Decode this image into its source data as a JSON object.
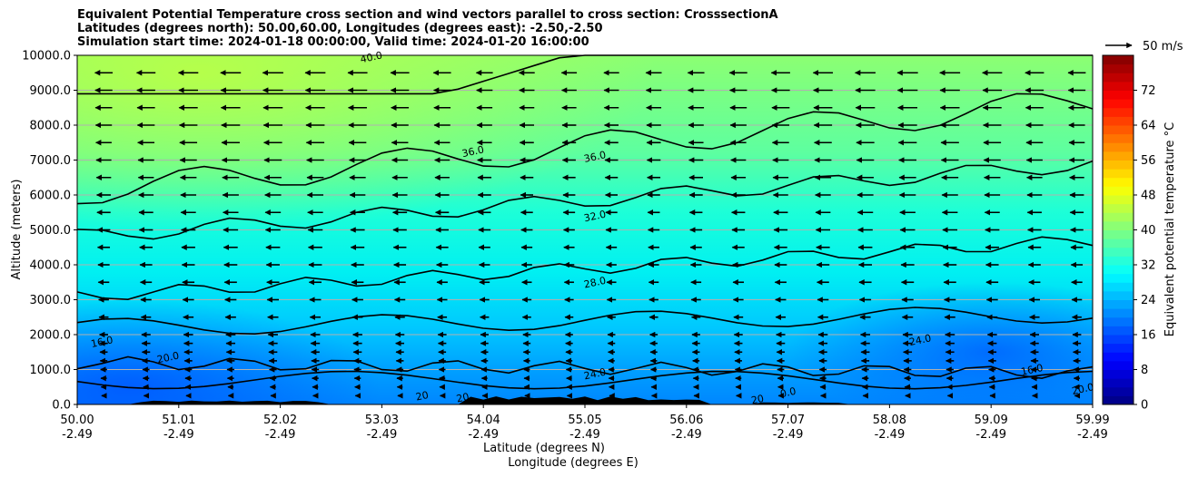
{
  "title": {
    "line1": "Equivalent Potential Temperature cross section and wind vectors parallel to cross section: CrosssectionA",
    "line2": "Latitudes (degrees north): 50.00,60.00, Longitudes (degrees east): -2.50,-2.50",
    "line3": "Simulation start time: 2024-01-18 00:00:00, Valid time: 2024-01-20 16:00:00"
  },
  "chart_data": {
    "type": "heatmap",
    "subtype": "filled-contour cross section with wind vectors",
    "xlabel_lat": "Latitude (degrees N)",
    "xlabel_lon": "Longitude (degrees E)",
    "ylabel": "Altitude (meters)",
    "ylim": [
      0,
      10000
    ],
    "y_ticks": [
      0,
      1000,
      2000,
      3000,
      4000,
      5000,
      6000,
      7000,
      8000,
      9000,
      10000
    ],
    "y_tick_labels": [
      "0.0",
      "1000.0",
      "2000.0",
      "3000.0",
      "4000.0",
      "5000.0",
      "6000.0",
      "7000.0",
      "8000.0",
      "9000.0",
      "10000.0"
    ],
    "x_ticks_lat": [
      "50.00",
      "51.01",
      "52.02",
      "53.03",
      "54.04",
      "55.05",
      "56.06",
      "57.07",
      "58.08",
      "59.09",
      "59.99"
    ],
    "x_ticks_lon": [
      "-2.49",
      "-2.49",
      "-2.49",
      "-2.49",
      "-2.49",
      "-2.49",
      "-2.49",
      "-2.49",
      "-2.49",
      "-2.49",
      "-2.49"
    ],
    "colorbar": {
      "label": "Equivalent potential temperature $^\\circ$C",
      "label_display": "Equivalent potential temperature °C",
      "range": [
        0,
        80
      ],
      "ticks": [
        "0",
        "8",
        "16",
        "24",
        "32",
        "40",
        "48",
        "56",
        "64",
        "72"
      ],
      "colormap": "jet"
    },
    "contour_levels": [
      16,
      20,
      24,
      28,
      32,
      36,
      40
    ],
    "contour_labels": [
      {
        "text": "36.0",
        "lat": 53.9,
        "alt": 7150
      },
      {
        "text": "36.0",
        "lat": 55.1,
        "alt": 7000
      },
      {
        "text": "32.0",
        "lat": 55.1,
        "alt": 5300
      },
      {
        "text": "28.0",
        "lat": 55.1,
        "alt": 3400
      },
      {
        "text": "24.0",
        "lat": 55.1,
        "alt": 780
      },
      {
        "text": "24.0",
        "lat": 58.3,
        "alt": 1750
      },
      {
        "text": "16.0",
        "lat": 50.25,
        "alt": 1700
      },
      {
        "text": "20.0",
        "lat": 50.9,
        "alt": 1250
      },
      {
        "text": "16.0",
        "lat": 59.4,
        "alt": 900
      },
      {
        "text": "20.0",
        "lat": 59.9,
        "alt": 350
      },
      {
        "text": "20",
        "lat": 53.4,
        "alt": 150
      },
      {
        "text": "20",
        "lat": 53.8,
        "alt": 100
      },
      {
        "text": "20",
        "lat": 56.7,
        "alt": 50
      },
      {
        "text": "0.0",
        "lat": 57.0,
        "alt": 250
      },
      {
        "text": "40.0",
        "lat": 52.9,
        "alt": 9850
      }
    ],
    "wind_reference": {
      "label": "50 m/s",
      "speed": 50
    },
    "wind_direction": "parallel to cross section, pointing toward lower latitude",
    "wind_grid": {
      "lat_count": 24,
      "alt_levels": [
        250,
        500,
        750,
        1000,
        1250,
        1500,
        1750,
        2000,
        2500,
        3000,
        3500,
        4000,
        4500,
        5000,
        5500,
        6000,
        6500,
        7000,
        7500,
        8000,
        8500,
        9000,
        9500
      ],
      "speed_max": 40,
      "speed_min": 5
    }
  }
}
